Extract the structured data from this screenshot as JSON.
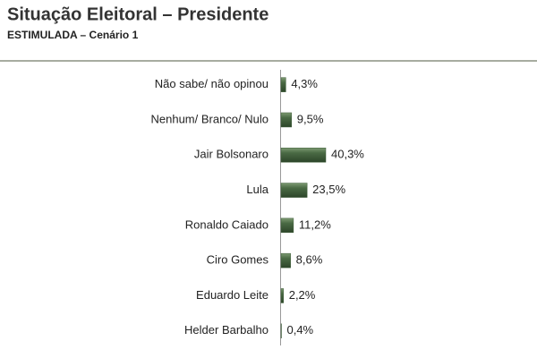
{
  "chart_data": {
    "type": "hbar",
    "title": "Situação Eleitoral – Presidente",
    "subtitle": "ESTIMULADA – Cenário 1",
    "categories": [
      "Não sabe/ não opinou",
      "Nenhum/ Branco/ Nulo",
      "Jair Bolsonaro",
      "Lula",
      "Ronaldo Caiado",
      "Ciro Gomes",
      "Eduardo Leite",
      "Helder Barbalho"
    ],
    "values": [
      4.3,
      9.5,
      40.3,
      23.5,
      11.2,
      8.6,
      2.2,
      0.4
    ],
    "value_labels": [
      "4,3%",
      "9,5%",
      "40,3%",
      "23,5%",
      "11,2%",
      "8,6%",
      "2,2%",
      "0,4%"
    ],
    "color": "#3f5e3a"
  }
}
